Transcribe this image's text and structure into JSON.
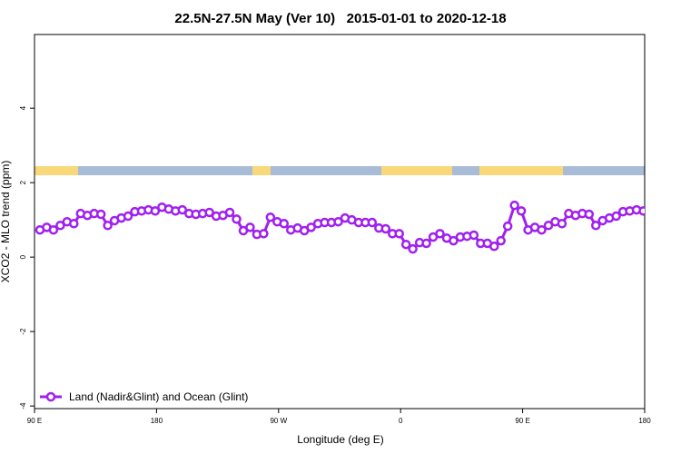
{
  "chart_data": {
    "type": "line",
    "title": "22.5N-27.5N May (Ver 10)   2015-01-01 to 2020-12-18",
    "x_label": "Longitude (deg E)",
    "y_label": "XCO2 - MLO trend (ppm)",
    "xlim": [
      90,
      540
    ],
    "ylim": [
      -4.07,
      5.98
    ],
    "xticks": [
      {
        "value": 90,
        "label": "90 E"
      },
      180,
      {
        "value": 270,
        "label": "90 W"
      },
      {
        "value": 360,
        "label": "0"
      },
      {
        "value": 450,
        "label": "90 E"
      },
      {
        "value": 540,
        "label": "180"
      }
    ],
    "yticks": [
      -4,
      -2,
      0,
      2,
      4
    ],
    "legend_position": "bottomleft",
    "x": [
      94,
      99,
      104,
      109,
      114,
      119,
      124,
      129,
      134,
      139,
      144,
      149,
      154,
      159,
      164,
      169,
      174,
      179,
      184,
      189,
      194,
      199,
      204,
      209,
      214,
      219,
      224,
      229,
      234,
      239,
      244,
      249,
      254,
      259,
      264,
      269,
      274,
      279,
      284,
      289,
      294,
      299,
      304,
      309,
      314,
      319,
      324,
      329,
      334,
      339,
      344,
      349,
      354,
      359,
      364,
      369,
      374,
      379,
      384,
      389,
      394,
      399,
      404,
      409,
      414,
      419,
      424,
      429,
      434,
      439,
      444,
      449,
      454,
      459,
      464,
      469,
      474,
      479,
      484,
      489,
      494,
      499,
      504,
      509,
      514,
      519,
      524,
      529,
      534,
      539
    ],
    "series": [
      {
        "name": "Land (Nadir&Glint) and Ocean (Glint)",
        "color": "#a020f0",
        "values": [
          0.73,
          0.8,
          0.73,
          0.85,
          0.95,
          0.9,
          1.17,
          1.12,
          1.17,
          1.15,
          0.85,
          0.98,
          1.05,
          1.1,
          1.22,
          1.24,
          1.27,
          1.24,
          1.34,
          1.29,
          1.24,
          1.27,
          1.17,
          1.15,
          1.17,
          1.2,
          1.1,
          1.12,
          1.2,
          1.02,
          0.71,
          0.8,
          0.61,
          0.63,
          1.07,
          0.95,
          0.9,
          0.73,
          0.78,
          0.71,
          0.8,
          0.9,
          0.93,
          0.93,
          0.95,
          1.05,
          1.0,
          0.93,
          0.93,
          0.93,
          0.78,
          0.76,
          0.63,
          0.63,
          0.34,
          0.22,
          0.39,
          0.37,
          0.54,
          0.63,
          0.51,
          0.44,
          0.54,
          0.56,
          0.59,
          0.37,
          0.37,
          0.29,
          0.44,
          0.83,
          1.39,
          1.24,
          0.73,
          0.8,
          0.73,
          0.85,
          0.95,
          0.9,
          1.17,
          1.12,
          1.17,
          1.15,
          0.85,
          0.98,
          1.05,
          1.1,
          1.22,
          1.24,
          1.27,
          1.24
        ]
      }
    ]
  }
}
